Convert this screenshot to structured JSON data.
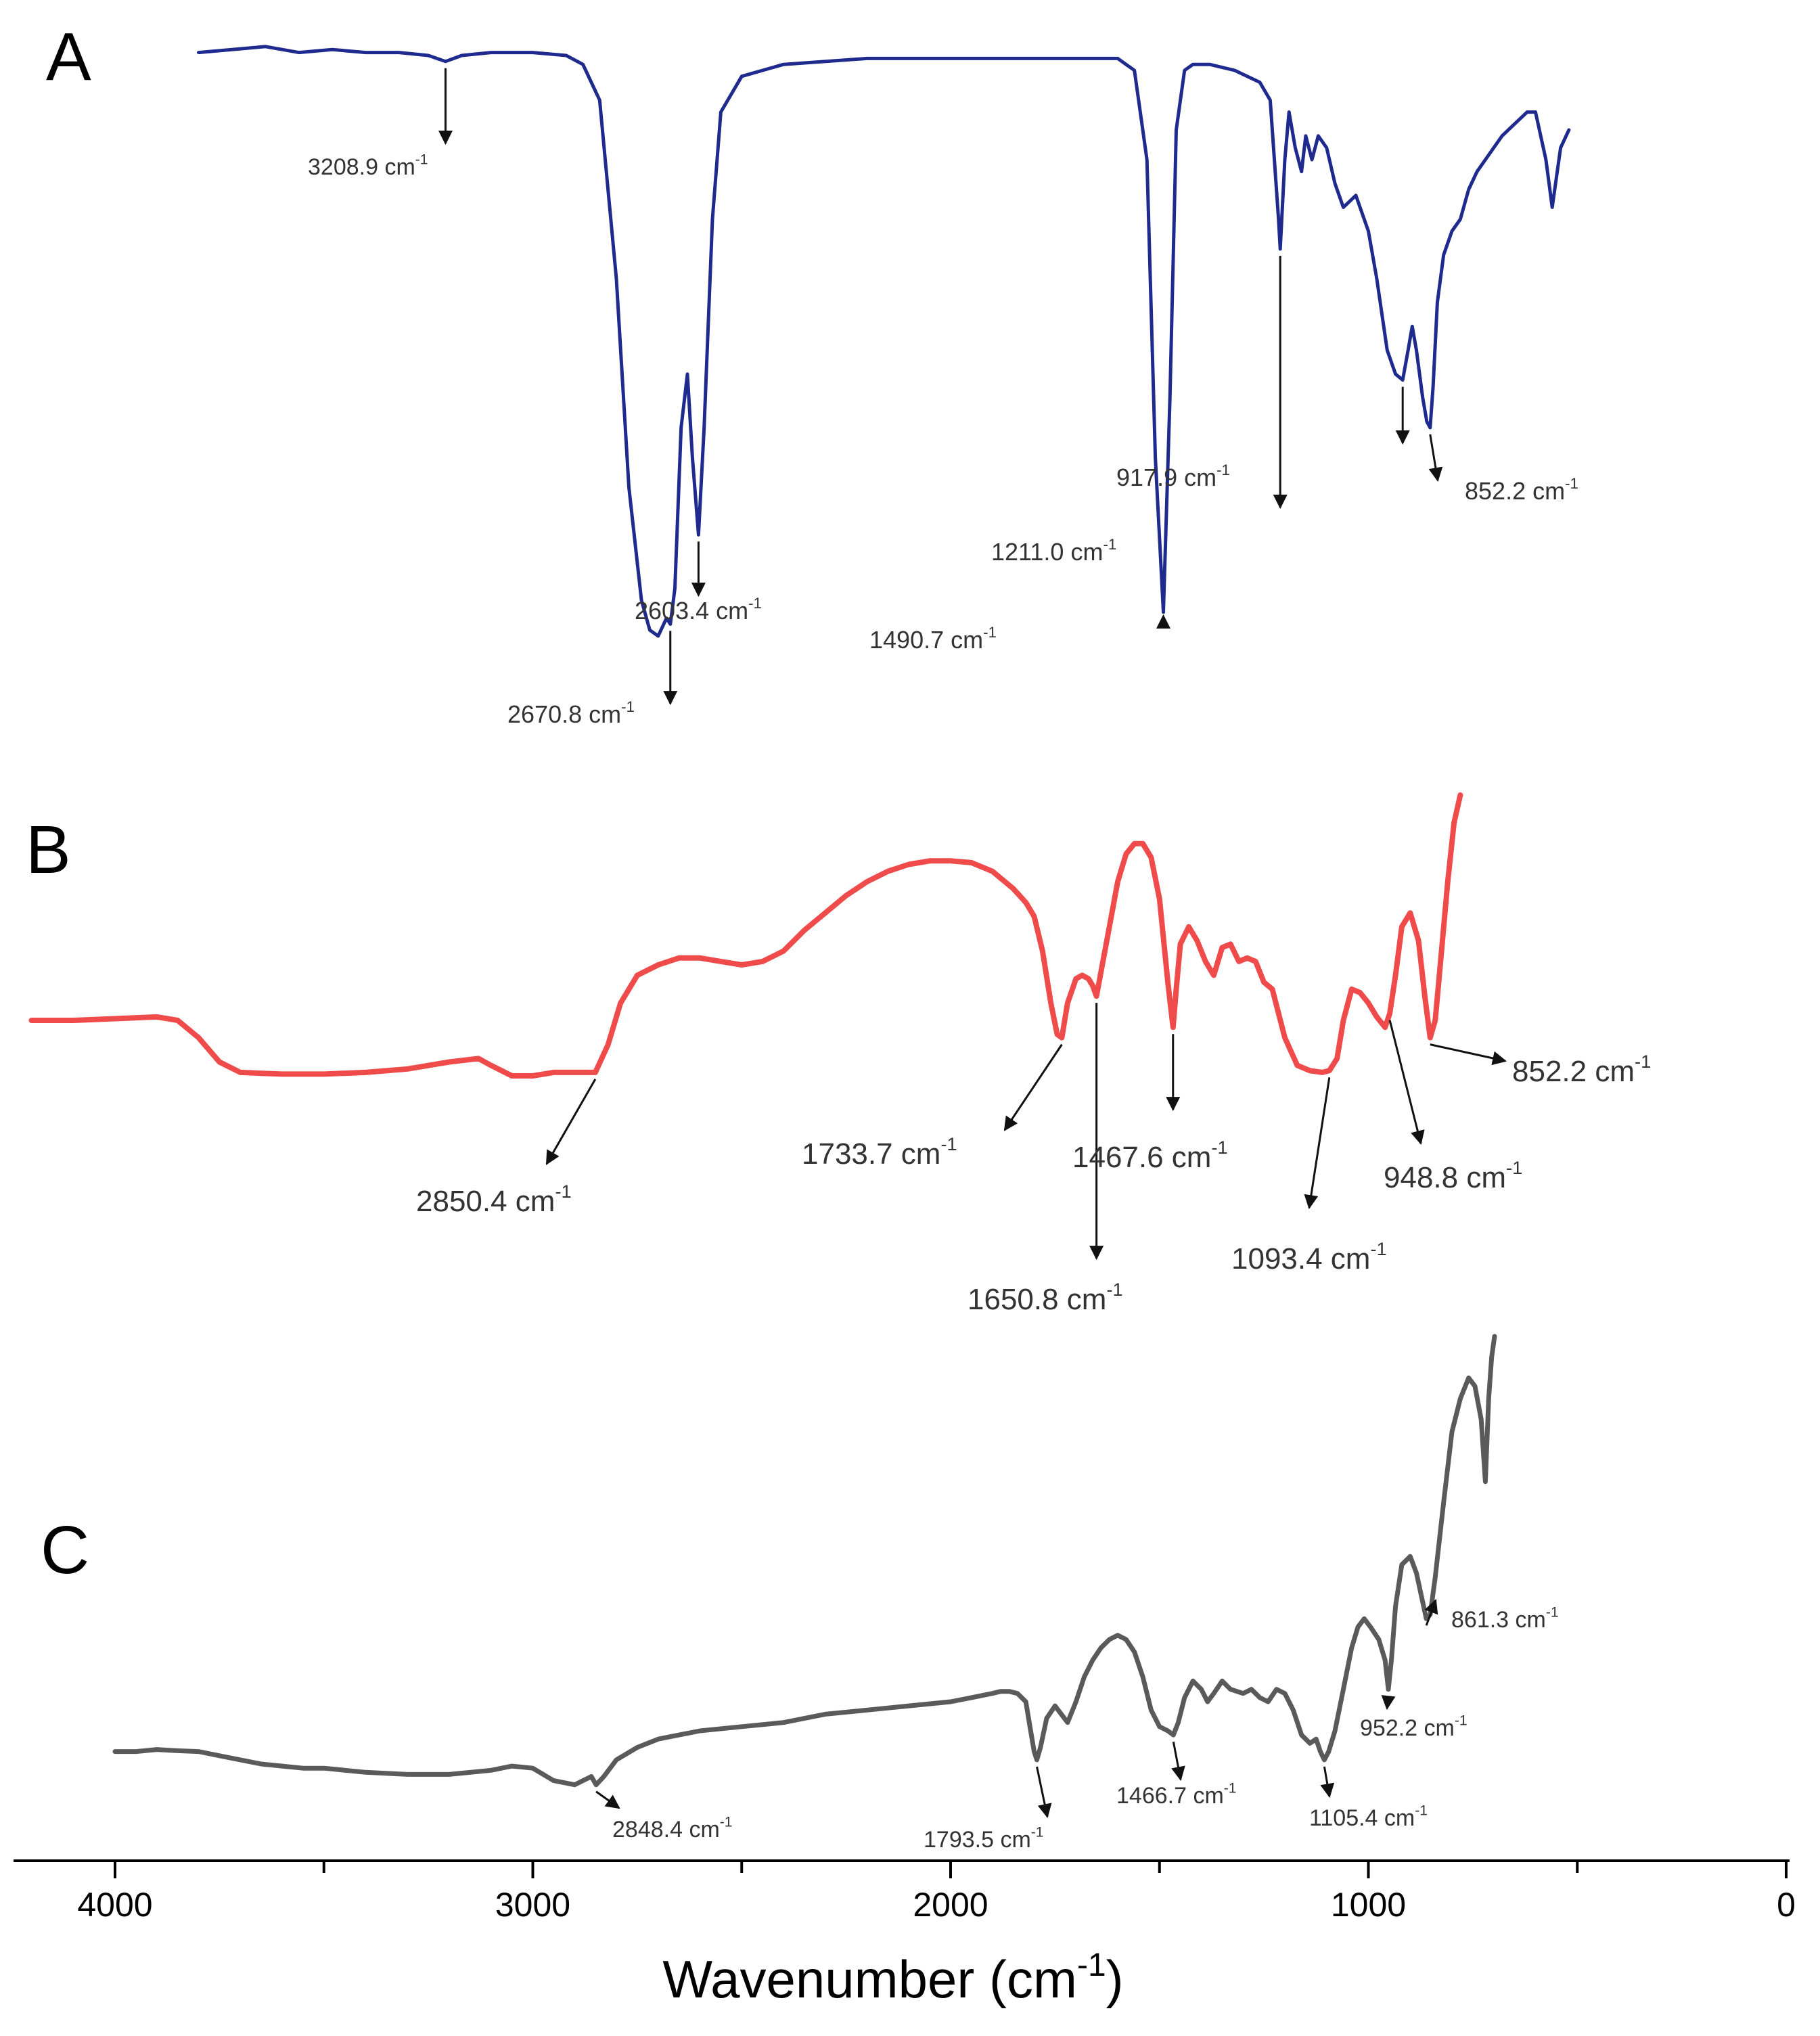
{
  "chart_data": {
    "type": "line",
    "xlabel": "Wavenumber (cm",
    "xlabel_sup": "-1",
    "xlabel_close": ")",
    "xlim": [
      4000,
      0
    ],
    "xticks": [
      "4000",
      "3000",
      "2000",
      "1000",
      "0"
    ],
    "grid": false,
    "legend": "none",
    "unit_label": "cm",
    "unit_sup": "-1",
    "panels": [
      {
        "label": "A",
        "color": "#1f2a8f",
        "x": [
          3800,
          3720,
          3640,
          3560,
          3480,
          3400,
          3320,
          3250,
          3208.9,
          3170,
          3100,
          3000,
          2920,
          2880,
          2840,
          2800,
          2770,
          2740,
          2720,
          2700,
          2680,
          2670.8,
          2660,
          2645,
          2630,
          2618,
          2603.4,
          2590,
          2570,
          2550,
          2500,
          2400,
          2200,
          2000,
          1800,
          1650,
          1600,
          1560,
          1530,
          1510,
          1490.7,
          1475,
          1460,
          1440,
          1420,
          1380,
          1320,
          1260,
          1235,
          1215,
          1211.0,
          1200,
          1190,
          1175,
          1160,
          1150,
          1135,
          1120,
          1100,
          1080,
          1060,
          1030,
          1000,
          980,
          955,
          935,
          917.9,
          905,
          895,
          885,
          870,
          860,
          852.2,
          845,
          835,
          820,
          800,
          780,
          760,
          740,
          720,
          680,
          650,
          620,
          600,
          575,
          560,
          540,
          520
        ],
        "y": [
          98,
          98.5,
          99,
          98,
          98.5,
          98,
          98,
          97.5,
          96.5,
          97.5,
          98,
          98,
          97.5,
          96,
          90,
          60,
          25,
          6,
          1,
          0,
          3,
          2,
          8,
          35,
          44,
          30,
          17,
          35,
          70,
          88,
          94,
          96,
          97,
          97,
          97,
          97,
          97,
          95,
          80,
          30,
          4,
          40,
          85,
          95,
          96,
          96,
          95,
          93,
          90,
          70,
          65,
          80,
          88,
          82,
          78,
          84,
          80,
          84,
          82,
          76,
          72,
          74,
          68,
          60,
          48,
          44,
          43,
          48,
          52,
          48,
          40,
          36,
          35,
          42,
          56,
          64,
          68,
          70,
          75,
          78,
          80,
          84,
          86,
          88,
          88,
          80,
          72,
          82,
          85
        ]
      },
      {
        "label": "B",
        "color": "#f04b4b",
        "x": [
          4200,
          4100,
          4000,
          3900,
          3850,
          3800,
          3750,
          3700,
          3600,
          3500,
          3400,
          3300,
          3200,
          3130,
          3100,
          3050,
          3000,
          2950,
          2900,
          2850.4,
          2820,
          2790,
          2750,
          2700,
          2650,
          2600,
          2550,
          2500,
          2450,
          2400,
          2350,
          2300,
          2250,
          2200,
          2150,
          2100,
          2050,
          2000,
          1950,
          1900,
          1850,
          1820,
          1800,
          1780,
          1760,
          1745,
          1733.7,
          1720,
          1700,
          1685,
          1670,
          1660,
          1650.8,
          1640,
          1620,
          1600,
          1580,
          1560,
          1540,
          1520,
          1500,
          1480,
          1467.6,
          1460,
          1450,
          1430,
          1410,
          1390,
          1370,
          1350,
          1330,
          1310,
          1290,
          1270,
          1250,
          1230,
          1200,
          1170,
          1140,
          1110,
          1093.4,
          1075,
          1060,
          1040,
          1020,
          1000,
          980,
          960,
          948.8,
          935,
          920,
          900,
          880,
          865,
          852.2,
          840,
          825,
          810,
          795,
          780
        ],
        "y": [
          35,
          35,
          35.5,
          36,
          35,
          30,
          23,
          20,
          19.5,
          19.5,
          20,
          21,
          23,
          24,
          22,
          19,
          19,
          20,
          20,
          20,
          28,
          40,
          48,
          51,
          53,
          53,
          52,
          51,
          52,
          55,
          61,
          66,
          71,
          75,
          78,
          80,
          81,
          81,
          80.5,
          78,
          73,
          69,
          65,
          55,
          40,
          31,
          30,
          40,
          47,
          48,
          47,
          45,
          42,
          49,
          62,
          75,
          83,
          86,
          86,
          82,
          70,
          46,
          33,
          44,
          57,
          62,
          58,
          52,
          48,
          56,
          57,
          52,
          53,
          52,
          46,
          44,
          30,
          22,
          20.5,
          20,
          20.5,
          24,
          35,
          44,
          43,
          40,
          36,
          33,
          37,
          48,
          62,
          66,
          58,
          42,
          30,
          35,
          55,
          75,
          92,
          100
        ]
      },
      {
        "label": "C",
        "color": "#5a5a5a",
        "x": [
          4000,
          3950,
          3900,
          3850,
          3800,
          3750,
          3700,
          3650,
          3600,
          3550,
          3500,
          3400,
          3300,
          3200,
          3100,
          3050,
          3000,
          2950,
          2900,
          2880,
          2860,
          2848.4,
          2830,
          2800,
          2750,
          2700,
          2650,
          2600,
          2500,
          2400,
          2300,
          2200,
          2100,
          2000,
          1950,
          1900,
          1880,
          1860,
          1840,
          1820,
          1810,
          1800,
          1793.5,
          1785,
          1770,
          1750,
          1735,
          1720,
          1700,
          1680,
          1660,
          1640,
          1620,
          1600,
          1580,
          1560,
          1540,
          1520,
          1500,
          1480,
          1466.7,
          1455,
          1440,
          1420,
          1400,
          1385,
          1370,
          1350,
          1330,
          1300,
          1280,
          1260,
          1240,
          1220,
          1200,
          1180,
          1160,
          1140,
          1125,
          1115,
          1105.4,
          1095,
          1080,
          1060,
          1040,
          1025,
          1010,
          995,
          975,
          960,
          952.2,
          945,
          935,
          920,
          900,
          885,
          870,
          861.3,
          852,
          840,
          820,
          800,
          780,
          760,
          745,
          730,
          720,
          712,
          705,
          698
        ],
        "y": [
          30,
          30,
          30.5,
          30.2,
          30,
          29,
          28,
          27,
          26.5,
          26,
          26,
          25,
          24.5,
          24.5,
          25.5,
          26.5,
          26,
          23,
          22,
          23,
          24,
          22,
          24,
          28,
          31,
          33,
          34,
          35,
          36,
          37,
          39,
          40,
          41,
          42,
          43,
          44,
          44.5,
          44.5,
          44,
          42,
          36,
          30,
          28,
          31,
          38,
          41,
          39,
          37,
          42,
          48,
          52,
          55,
          57,
          58,
          57,
          54,
          48,
          40,
          36,
          35,
          34,
          37,
          43,
          47,
          45,
          42,
          44,
          47,
          45,
          44,
          45,
          43,
          42,
          45,
          44,
          40,
          34,
          32,
          33,
          30,
          28,
          30,
          35,
          45,
          55,
          60,
          62,
          60,
          57,
          52,
          45,
          52,
          65,
          75,
          77,
          73,
          66,
          62,
          63,
          72,
          90,
          107,
          115,
          120,
          118,
          110,
          95,
          115,
          125,
          130
        ]
      }
    ],
    "annotations": [
      {
        "panel": "A",
        "text": "3208.9",
        "x": 3208.9
      },
      {
        "panel": "A",
        "text": "2670.8",
        "x": 2670.8
      },
      {
        "panel": "A",
        "text": "2603.4",
        "x": 2603.4
      },
      {
        "panel": "A",
        "text": "1490.7",
        "x": 1490.7
      },
      {
        "panel": "A",
        "text": "1211.0",
        "x": 1211.0
      },
      {
        "panel": "A",
        "text": "917.9",
        "x": 917.9
      },
      {
        "panel": "A",
        "text": "852.2",
        "x": 852.2
      },
      {
        "panel": "B",
        "text": "2850.4",
        "x": 2850.4
      },
      {
        "panel": "B",
        "text": "1733.7",
        "x": 1733.7
      },
      {
        "panel": "B",
        "text": "1650.8",
        "x": 1650.8
      },
      {
        "panel": "B",
        "text": "1467.6",
        "x": 1467.6
      },
      {
        "panel": "B",
        "text": "1093.4",
        "x": 1093.4
      },
      {
        "panel": "B",
        "text": "948.8",
        "x": 948.8
      },
      {
        "panel": "B",
        "text": "852.2",
        "x": 852.2
      },
      {
        "panel": "C",
        "text": "2848.4",
        "x": 2848.4
      },
      {
        "panel": "C",
        "text": "1793.5",
        "x": 1793.5
      },
      {
        "panel": "C",
        "text": "1466.7",
        "x": 1466.7
      },
      {
        "panel": "C",
        "text": "1105.4",
        "x": 1105.4
      },
      {
        "panel": "C",
        "text": "952.2",
        "x": 952.2
      },
      {
        "panel": "C",
        "text": "861.3",
        "x": 861.3
      }
    ]
  }
}
